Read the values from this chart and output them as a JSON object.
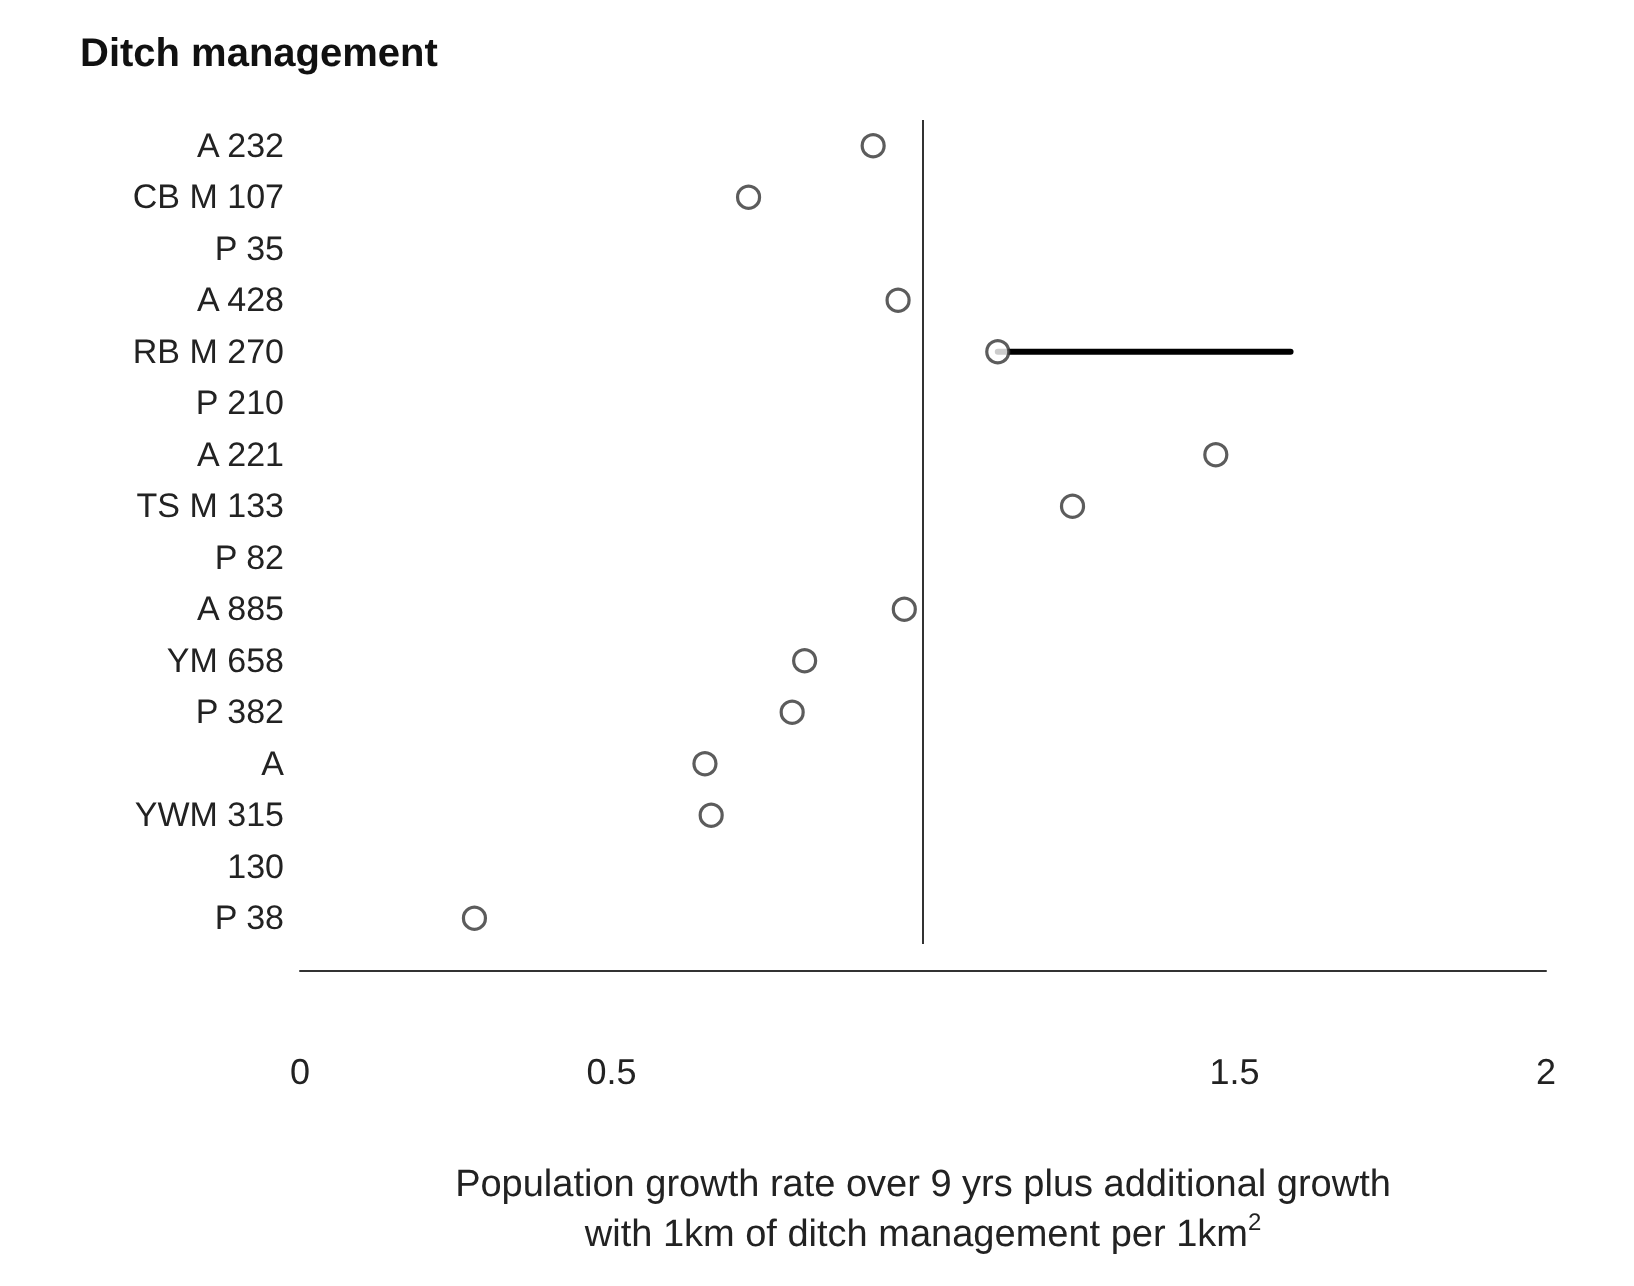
{
  "chart_data": {
    "type": "scatter",
    "title": "Ditch management",
    "xlabel": "Population growth rate over 9 yrs plus additional growth with 1km of ditch management per 1km$^{2}$",
    "categories": [
      "A 232",
      "CB M 107",
      "P 35",
      "A 428",
      "RB M 270",
      "P 210",
      "A 221",
      "TS M 133",
      "P 82",
      "A 885",
      "YM 658",
      "P 382",
      "A",
      "YWM 315",
      "130",
      "P 38"
    ],
    "orientation": "horizontal",
    "series": [
      {
        "color": "#333333",
        "values": [
          0.92,
          0.72,
          null,
          0.96,
          1.12,
          null,
          1.47,
          1.24,
          null,
          0.97,
          0.81,
          0.79,
          0.65,
          0.66,
          null,
          0.28
        ],
        "errors": [
          null,
          null,
          null,
          null,
          [
            1.12,
            1.59
          ],
          null,
          null,
          null,
          null,
          null,
          null,
          null,
          null,
          null,
          null,
          null
        ]
      }
    ],
    "xlim": [
      0,
      2
    ],
    "xticks": [
      0,
      0.5,
      1.5,
      2
    ],
    "ref_lines": [
      {
        "axis": "x",
        "value": 1,
        "color": "#333333"
      }
    ],
    "marker": "circle",
    "grid": false
  }
}
